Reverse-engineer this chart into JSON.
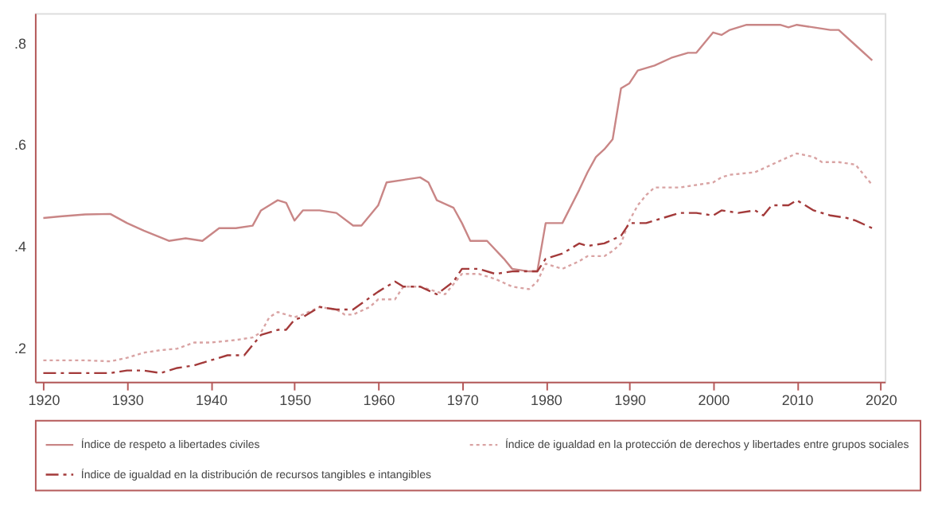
{
  "chart_data": {
    "type": "line",
    "xlim": [
      1919,
      2020.5
    ],
    "ylim": [
      0.133,
      0.858
    ],
    "xticks": [
      1920,
      1930,
      1940,
      1950,
      1960,
      1970,
      1980,
      1990,
      2000,
      2010,
      2020
    ],
    "yticks": [
      {
        "value": 0.2,
        "label": ".2"
      },
      {
        "value": 0.4,
        "label": ".4"
      },
      {
        "value": 0.6,
        "label": ".6"
      },
      {
        "value": 0.8,
        "label": ".8"
      }
    ],
    "grid": false,
    "legend": "bottom",
    "marker": "none",
    "series": [
      {
        "name": "Índice de respeto a libertades civiles",
        "color": "#c98686",
        "line_style": "solid",
        "x": [
          1920,
          1922,
          1925,
          1928,
          1930,
          1932,
          1935,
          1937,
          1939,
          1941,
          1943,
          1945,
          1946,
          1948,
          1949,
          1950,
          1951,
          1953,
          1955,
          1957,
          1958,
          1960,
          1961,
          1963,
          1965,
          1966,
          1967,
          1969,
          1970,
          1971,
          1973,
          1975,
          1976,
          1978,
          1979,
          1980,
          1982,
          1984,
          1985,
          1986,
          1987,
          1988,
          1989,
          1990,
          1991,
          1993,
          1995,
          1997,
          1998,
          2000,
          2001,
          2002,
          2004,
          2006,
          2008,
          2009,
          2010,
          2012,
          2014,
          2015,
          2017,
          2019
        ],
        "values": [
          0.455,
          0.458,
          0.462,
          0.463,
          0.445,
          0.43,
          0.41,
          0.415,
          0.41,
          0.435,
          0.435,
          0.44,
          0.47,
          0.49,
          0.485,
          0.45,
          0.47,
          0.47,
          0.465,
          0.44,
          0.44,
          0.48,
          0.525,
          0.53,
          0.535,
          0.525,
          0.49,
          0.475,
          0.445,
          0.41,
          0.41,
          0.375,
          0.355,
          0.35,
          0.35,
          0.445,
          0.445,
          0.51,
          0.545,
          0.575,
          0.59,
          0.61,
          0.71,
          0.72,
          0.745,
          0.755,
          0.77,
          0.78,
          0.78,
          0.82,
          0.815,
          0.825,
          0.835,
          0.835,
          0.835,
          0.83,
          0.835,
          0.83,
          0.825,
          0.825,
          0.795,
          0.765
        ]
      },
      {
        "name": "Índice de igualdad en la protección de derechos y libertades entre grupos sociales",
        "color": "#d9a3a3",
        "line_style": "dotted",
        "x": [
          1920,
          1925,
          1928,
          1930,
          1932,
          1934,
          1936,
          1938,
          1940,
          1943,
          1945,
          1946,
          1947,
          1948,
          1950,
          1951,
          1953,
          1955,
          1956,
          1957,
          1959,
          1960,
          1962,
          1963,
          1965,
          1967,
          1968,
          1970,
          1972,
          1974,
          1976,
          1978,
          1979,
          1980,
          1982,
          1984,
          1985,
          1987,
          1988,
          1989,
          1990,
          1991,
          1992,
          1993,
          1996,
          1998,
          2000,
          2001,
          2002,
          2005,
          2007,
          2009,
          2010,
          2012,
          2013,
          2015,
          2017,
          2019
        ],
        "values": [
          0.175,
          0.175,
          0.173,
          0.18,
          0.19,
          0.195,
          0.198,
          0.21,
          0.21,
          0.215,
          0.22,
          0.23,
          0.26,
          0.27,
          0.26,
          0.265,
          0.28,
          0.275,
          0.265,
          0.265,
          0.28,
          0.295,
          0.295,
          0.32,
          0.32,
          0.31,
          0.305,
          0.345,
          0.345,
          0.335,
          0.32,
          0.315,
          0.33,
          0.365,
          0.355,
          0.37,
          0.38,
          0.38,
          0.39,
          0.405,
          0.45,
          0.48,
          0.5,
          0.515,
          0.515,
          0.52,
          0.525,
          0.535,
          0.54,
          0.545,
          0.56,
          0.575,
          0.582,
          0.575,
          0.565,
          0.565,
          0.56,
          0.52
        ]
      },
      {
        "name": "Índice de igualdad en la distribución de recursos tangibles e intangibles",
        "color": "#a33a3a",
        "line_style": "dashed",
        "x": [
          1920,
          1925,
          1928,
          1930,
          1932,
          1934,
          1936,
          1938,
          1940,
          1942,
          1944,
          1946,
          1948,
          1949,
          1950,
          1951,
          1953,
          1955,
          1957,
          1960,
          1962,
          1963,
          1965,
          1967,
          1969,
          1970,
          1972,
          1974,
          1976,
          1978,
          1979,
          1980,
          1982,
          1984,
          1985,
          1987,
          1989,
          1990,
          1992,
          1994,
          1996,
          1998,
          2000,
          2001,
          2003,
          2005,
          2006,
          2007,
          2009,
          2010,
          2012,
          2014,
          2016,
          2017,
          2019
        ],
        "values": [
          0.15,
          0.15,
          0.15,
          0.155,
          0.155,
          0.15,
          0.16,
          0.165,
          0.175,
          0.185,
          0.185,
          0.225,
          0.235,
          0.235,
          0.255,
          0.26,
          0.28,
          0.275,
          0.275,
          0.31,
          0.33,
          0.32,
          0.32,
          0.305,
          0.33,
          0.355,
          0.355,
          0.345,
          0.35,
          0.35,
          0.35,
          0.375,
          0.385,
          0.405,
          0.4,
          0.405,
          0.42,
          0.445,
          0.445,
          0.455,
          0.465,
          0.465,
          0.46,
          0.47,
          0.465,
          0.47,
          0.46,
          0.48,
          0.48,
          0.49,
          0.47,
          0.46,
          0.455,
          0.45,
          0.435
        ]
      }
    ]
  }
}
